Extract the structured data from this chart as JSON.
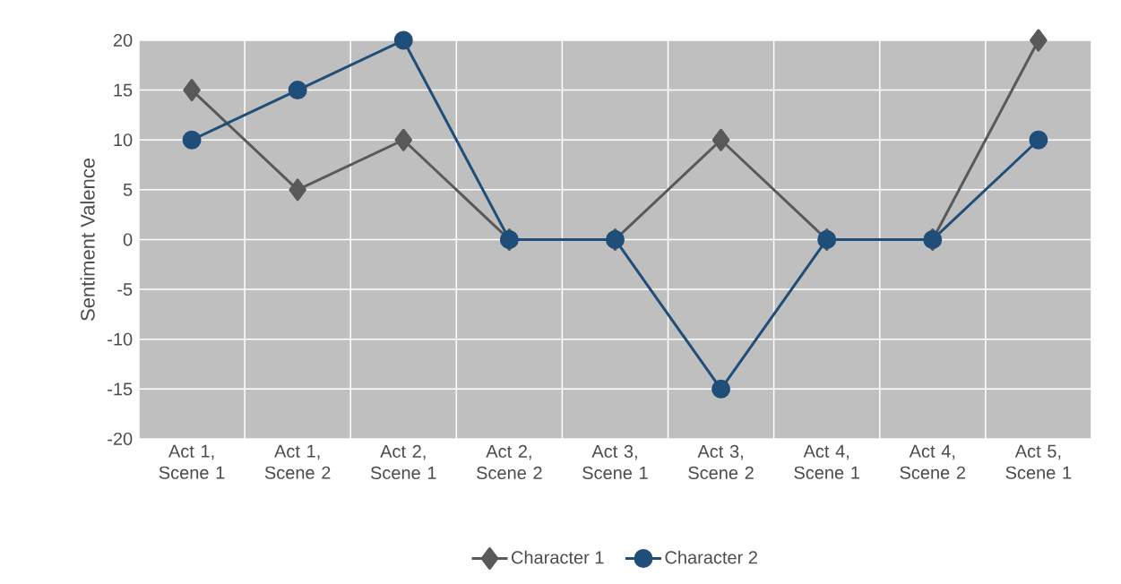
{
  "chart_data": {
    "type": "line",
    "ylabel": "Sentiment Valence",
    "categories": [
      "Act 1, Scene 1",
      "Act 1, Scene 2",
      "Act 2, Scene 1",
      "Act 2, Scene 2",
      "Act 3, Scene 1",
      "Act 3, Scene 2",
      "Act 4, Scene 1",
      "Act 4, Scene 2",
      "Act 5, Scene 1"
    ],
    "series": [
      {
        "name": "Character 1",
        "color": "#595959",
        "marker": "diamond",
        "values": [
          15,
          5,
          10,
          0,
          0,
          10,
          0,
          0,
          20
        ]
      },
      {
        "name": "Character 2",
        "color": "#1f4e79",
        "marker": "circle",
        "values": [
          10,
          15,
          20,
          0,
          0,
          -15,
          0,
          0,
          10
        ]
      }
    ],
    "ylim": [
      -20,
      20
    ],
    "yticks": [
      -20,
      -15,
      -10,
      -5,
      0,
      5,
      10,
      15,
      20
    ],
    "grid": true,
    "legend": "bottom",
    "line_style": "solid"
  }
}
